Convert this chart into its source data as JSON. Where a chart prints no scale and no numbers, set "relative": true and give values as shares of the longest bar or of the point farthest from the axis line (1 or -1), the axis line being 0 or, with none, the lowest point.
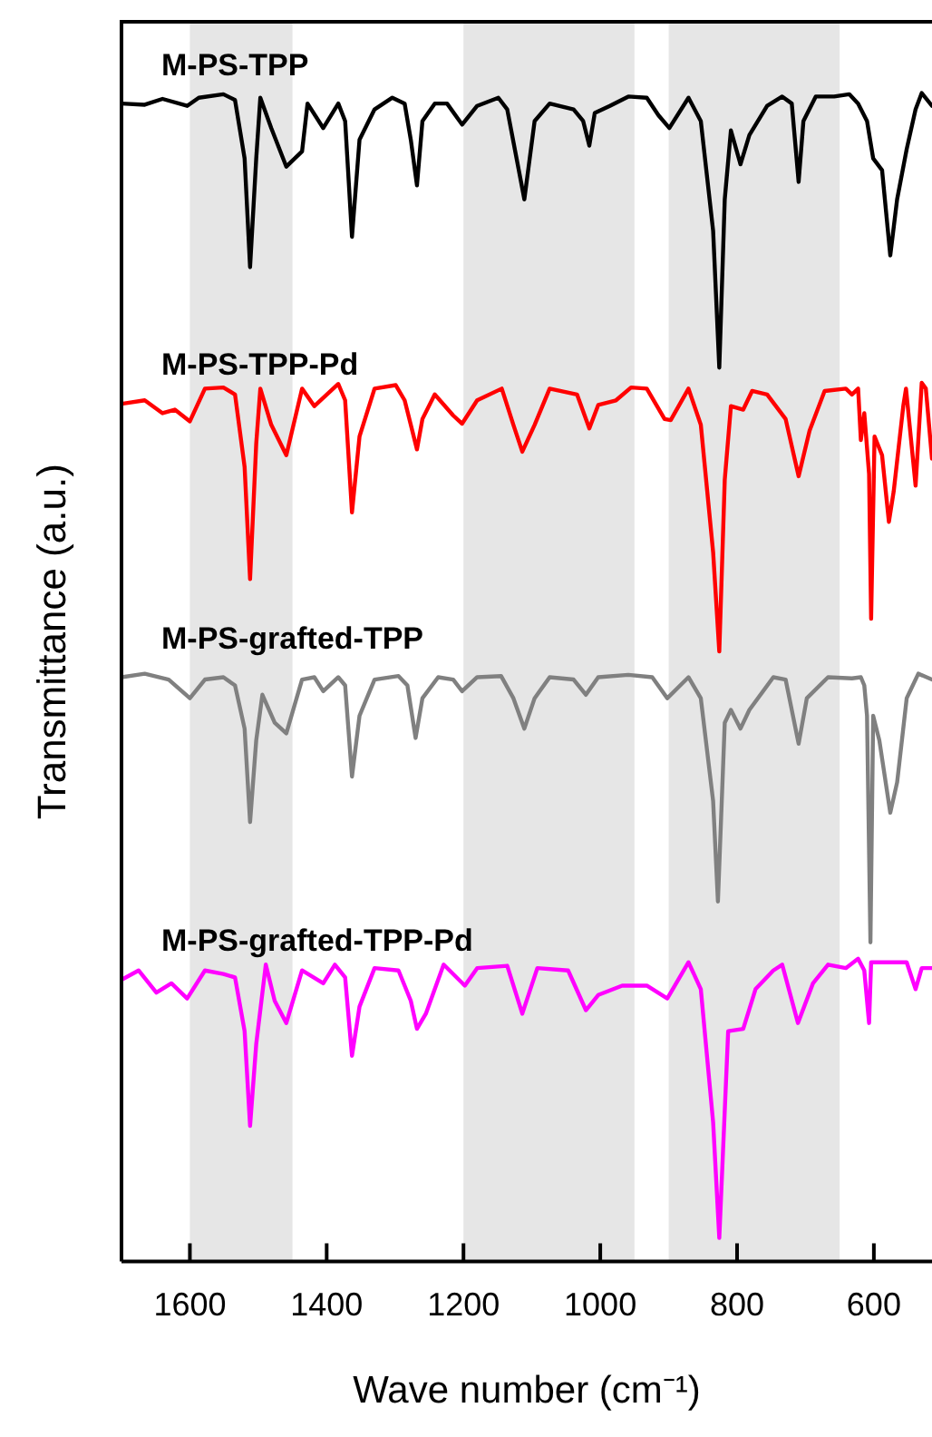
{
  "chart_data": {
    "type": "line",
    "xlabel": "Wave number (cm⁻¹)",
    "ylabel": "Transmittance (a.u.)",
    "relative": true,
    "legend": false,
    "grid": false,
    "marker": "none",
    "line_style": "solid",
    "xlim": [
      1700,
      515
    ],
    "xticks": [
      1600,
      1400,
      1200,
      1000,
      800,
      600
    ],
    "bands": [
      {
        "axis": "x",
        "from": 1600,
        "to": 1450,
        "color": "#e6e6e6"
      },
      {
        "axis": "x",
        "from": 1200,
        "to": 950,
        "color": "#e6e6e6"
      },
      {
        "axis": "x",
        "from": 900,
        "to": 650,
        "color": "#e6e6e6"
      }
    ],
    "series": [
      {
        "name": "M-PS-TPP",
        "color": "#000000",
        "x": [
          1700,
          1666,
          1640,
          1604,
          1587,
          1551,
          1534,
          1520,
          1512,
          1503,
          1497,
          1481,
          1459,
          1436,
          1428,
          1405,
          1383,
          1373,
          1363,
          1352,
          1330,
          1304,
          1286,
          1277,
          1268,
          1260,
          1242,
          1224,
          1202,
          1180,
          1149,
          1136,
          1111,
          1096,
          1074,
          1039,
          1025,
          1016,
          1008,
          986,
          959,
          932,
          915,
          899,
          871,
          853,
          835,
          826,
          818,
          809,
          795,
          782,
          756,
          734,
          720,
          710,
          703,
          685,
          658,
          636,
          623,
          610,
          601,
          588,
          576,
          566,
          552,
          539,
          530,
          515
        ],
        "values": [
          0.991,
          0.99,
          0.995,
          0.989,
          0.996,
          0.999,
          0.994,
          0.944,
          0.851,
          0.944,
          0.996,
          0.97,
          0.937,
          0.95,
          0.991,
          0.97,
          0.991,
          0.976,
          0.877,
          0.96,
          0.986,
          0.996,
          0.991,
          0.96,
          0.921,
          0.976,
          0.991,
          0.991,
          0.973,
          0.989,
          0.996,
          0.986,
          0.909,
          0.976,
          0.991,
          0.986,
          0.976,
          0.955,
          0.983,
          0.989,
          0.997,
          0.996,
          0.981,
          0.97,
          0.996,
          0.976,
          0.882,
          0.765,
          0.909,
          0.968,
          0.939,
          0.964,
          0.989,
          0.997,
          0.991,
          0.924,
          0.976,
          0.997,
          0.997,
          0.999,
          0.991,
          0.976,
          0.944,
          0.934,
          0.861,
          0.909,
          0.952,
          0.986,
          1.0,
          0.989
        ]
      },
      {
        "name": "M-PS-TPP-Pd",
        "color": "#ff0000",
        "x": [
          1700,
          1666,
          1640,
          1622,
          1600,
          1578,
          1551,
          1534,
          1520,
          1512,
          1503,
          1497,
          1481,
          1459,
          1436,
          1418,
          1383,
          1373,
          1363,
          1352,
          1330,
          1299,
          1286,
          1268,
          1260,
          1242,
          1215,
          1202,
          1180,
          1144,
          1127,
          1114,
          1096,
          1074,
          1034,
          1016,
          1003,
          977,
          955,
          932,
          906,
          897,
          871,
          853,
          835,
          826,
          818,
          809,
          791,
          778,
          756,
          729,
          710,
          694,
          672,
          641,
          632,
          623,
          619,
          614,
          607,
          604,
          599,
          588,
          578,
          571,
          557,
          553,
          539,
          530,
          524,
          515
        ],
        "values": [
          0.734,
          0.737,
          0.726,
          0.729,
          0.719,
          0.747,
          0.748,
          0.742,
          0.68,
          0.584,
          0.7,
          0.747,
          0.716,
          0.69,
          0.747,
          0.732,
          0.751,
          0.737,
          0.641,
          0.706,
          0.747,
          0.75,
          0.737,
          0.695,
          0.721,
          0.742,
          0.724,
          0.717,
          0.737,
          0.747,
          0.716,
          0.693,
          0.716,
          0.747,
          0.742,
          0.713,
          0.733,
          0.737,
          0.748,
          0.747,
          0.721,
          0.72,
          0.747,
          0.716,
          0.607,
          0.522,
          0.669,
          0.732,
          0.729,
          0.745,
          0.742,
          0.721,
          0.672,
          0.711,
          0.745,
          0.747,
          0.742,
          0.747,
          0.703,
          0.726,
          0.674,
          0.55,
          0.706,
          0.69,
          0.633,
          0.659,
          0.732,
          0.747,
          0.664,
          0.752,
          0.747,
          0.687
        ]
      },
      {
        "name": "M-PS-grafted-TPP",
        "color": "#808080",
        "x": [
          1700,
          1666,
          1631,
          1600,
          1578,
          1551,
          1534,
          1520,
          1512,
          1503,
          1494,
          1476,
          1459,
          1436,
          1418,
          1405,
          1383,
          1373,
          1363,
          1352,
          1330,
          1295,
          1282,
          1270,
          1260,
          1237,
          1215,
          1202,
          1180,
          1145,
          1127,
          1111,
          1096,
          1074,
          1039,
          1021,
          1003,
          959,
          924,
          902,
          871,
          853,
          835,
          828,
          818,
          809,
          795,
          782,
          747,
          729,
          710,
          698,
          667,
          632,
          619,
          614,
          610,
          605,
          601,
          592,
          576,
          566,
          552,
          535,
          515
        ],
        "values": [
          0.5,
          0.503,
          0.498,
          0.482,
          0.498,
          0.5,
          0.493,
          0.456,
          0.376,
          0.446,
          0.485,
          0.461,
          0.452,
          0.498,
          0.5,
          0.488,
          0.5,
          0.493,
          0.415,
          0.467,
          0.498,
          0.501,
          0.493,
          0.448,
          0.482,
          0.5,
          0.498,
          0.488,
          0.5,
          0.501,
          0.482,
          0.456,
          0.482,
          0.5,
          0.498,
          0.485,
          0.5,
          0.502,
          0.5,
          0.482,
          0.5,
          0.482,
          0.394,
          0.308,
          0.461,
          0.472,
          0.456,
          0.472,
          0.5,
          0.498,
          0.443,
          0.482,
          0.5,
          0.499,
          0.5,
          0.493,
          0.467,
          0.273,
          0.467,
          0.446,
          0.384,
          0.41,
          0.482,
          0.503,
          0.498
        ]
      },
      {
        "name": "M-PS-grafted-TPP-Pd",
        "color": "#ff00ff",
        "x": [
          1700,
          1675,
          1649,
          1627,
          1604,
          1578,
          1551,
          1534,
          1520,
          1512,
          1503,
          1489,
          1476,
          1459,
          1436,
          1405,
          1388,
          1373,
          1363,
          1352,
          1330,
          1295,
          1277,
          1268,
          1255,
          1229,
          1198,
          1180,
          1136,
          1114,
          1092,
          1047,
          1021,
          1003,
          968,
          932,
          902,
          871,
          853,
          835,
          826,
          813,
          791,
          773,
          747,
          734,
          711,
          689,
          667,
          641,
          623,
          614,
          607,
          604,
          588,
          552,
          539,
          530,
          515
        ],
        "values": [
          0.241,
          0.249,
          0.23,
          0.238,
          0.225,
          0.249,
          0.246,
          0.243,
          0.197,
          0.116,
          0.186,
          0.254,
          0.223,
          0.204,
          0.249,
          0.238,
          0.254,
          0.243,
          0.176,
          0.218,
          0.251,
          0.249,
          0.223,
          0.199,
          0.212,
          0.254,
          0.236,
          0.251,
          0.253,
          0.212,
          0.251,
          0.249,
          0.215,
          0.228,
          0.236,
          0.236,
          0.225,
          0.256,
          0.233,
          0.119,
          0.02,
          0.197,
          0.199,
          0.233,
          0.249,
          0.254,
          0.204,
          0.238,
          0.254,
          0.251,
          0.259,
          0.249,
          0.204,
          0.256,
          0.256,
          0.256,
          0.233,
          0.251,
          0.251
        ]
      }
    ]
  }
}
